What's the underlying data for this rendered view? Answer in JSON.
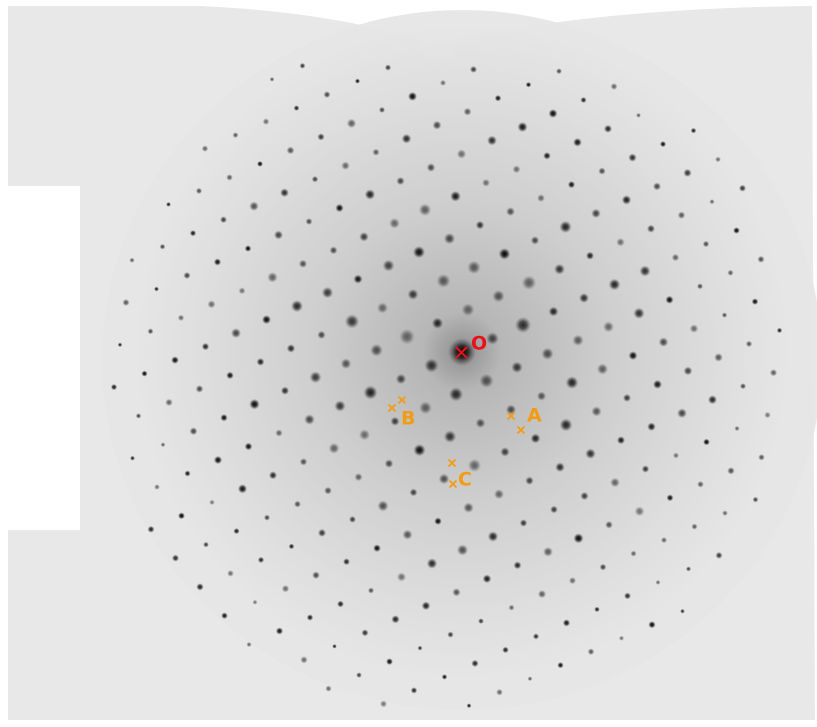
{
  "markers": [
    {
      "label": "O"
    },
    {
      "label": "A"
    },
    {
      "label": "B"
    },
    {
      "label": "C"
    }
  ]
}
